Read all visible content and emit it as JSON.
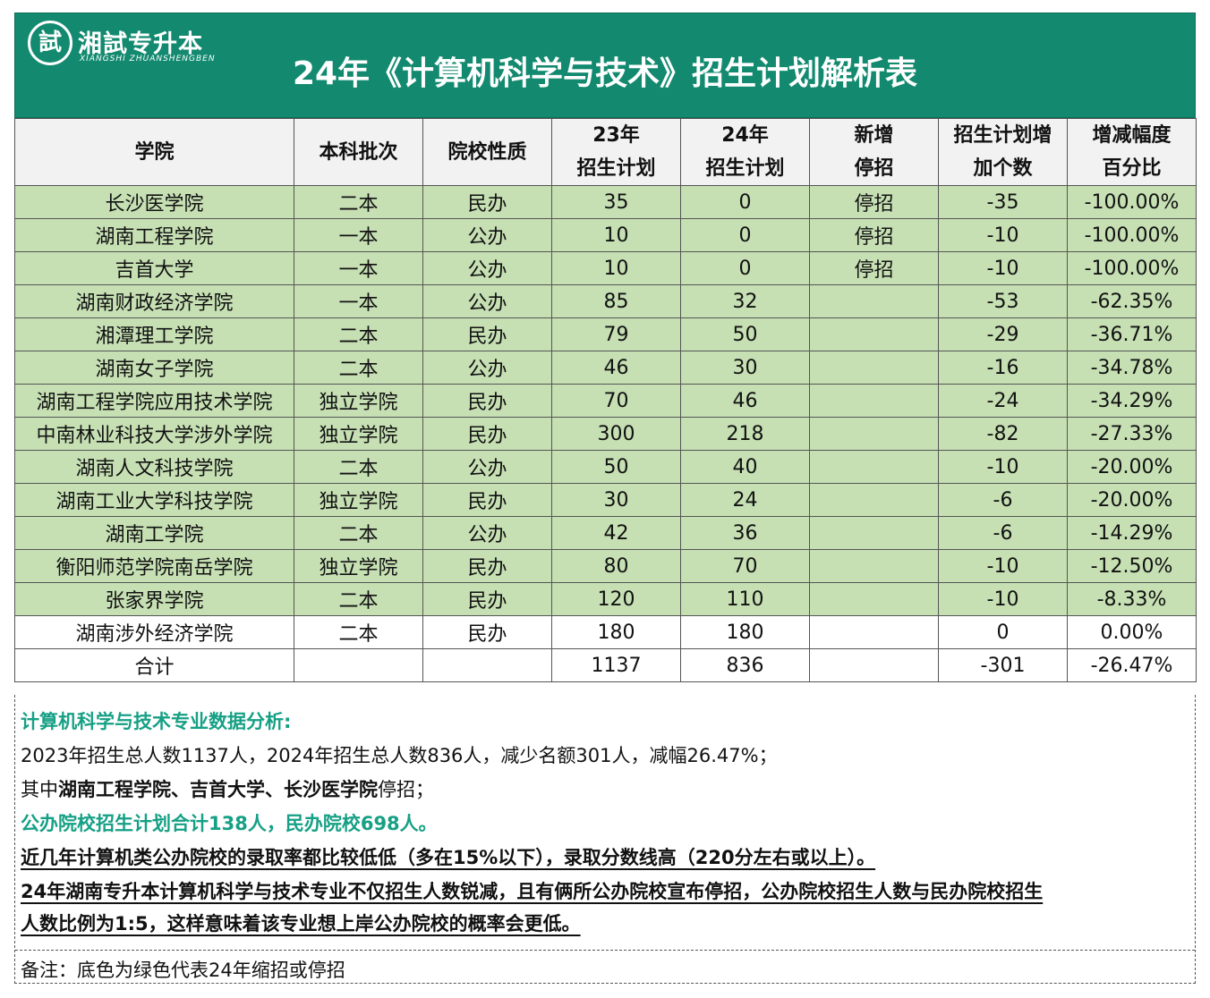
{
  "header": {
    "logo_char": "試",
    "logo_name": "湘試专升本",
    "logo_pinyin": "XIANGSHI ZHUANSHENGBEN",
    "title": "24年《计算机科学与技术》招生计划解析表"
  },
  "table": {
    "columns": [
      [
        "学院"
      ],
      [
        "本科批次"
      ],
      [
        "院校性质"
      ],
      [
        "23年",
        "招生计划"
      ],
      [
        "24年",
        "招生计划"
      ],
      [
        "新增",
        "停招"
      ],
      [
        "招生计划增",
        "加个数"
      ],
      [
        "增减幅度",
        "百分比"
      ]
    ],
    "rows": [
      [
        "长沙医学院",
        "二本",
        "民办",
        "35",
        "0",
        "停招",
        "-35",
        "-100.00%"
      ],
      [
        "湖南工程学院",
        "一本",
        "公办",
        "10",
        "0",
        "停招",
        "-10",
        "-100.00%"
      ],
      [
        "吉首大学",
        "一本",
        "公办",
        "10",
        "0",
        "停招",
        "-10",
        "-100.00%"
      ],
      [
        "湖南财政经济学院",
        "一本",
        "公办",
        "85",
        "32",
        null,
        "-53",
        "-62.35%"
      ],
      [
        "湘潭理工学院",
        "二本",
        "民办",
        "79",
        "50",
        null,
        "-29",
        "-36.71%"
      ],
      [
        "湖南女子学院",
        "二本",
        "公办",
        "46",
        "30",
        null,
        "-16",
        "-34.78%"
      ],
      [
        "湖南工程学院应用技术学院",
        "独立学院",
        "民办",
        "70",
        "46",
        null,
        "-24",
        "-34.29%"
      ],
      [
        "中南林业科技大学涉外学院",
        "独立学院",
        "民办",
        "300",
        "218",
        null,
        "-82",
        "-27.33%"
      ],
      [
        "湖南人文科技学院",
        "二本",
        "公办",
        "50",
        "40",
        null,
        "-10",
        "-20.00%"
      ],
      [
        "湖南工业大学科技学院",
        "独立学院",
        "民办",
        "30",
        "24",
        null,
        "-6",
        "-20.00%"
      ],
      [
        "湖南工学院",
        "二本",
        "公办",
        "42",
        "36",
        null,
        "-6",
        "-14.29%"
      ],
      [
        "衡阳师范学院南岳学院",
        "独立学院",
        "民办",
        "80",
        "70",
        null,
        "-10",
        "-12.50%"
      ],
      [
        "张家界学院",
        "二本",
        "民办",
        "120",
        "110",
        null,
        "-10",
        "-8.33%"
      ],
      [
        "湖南涉外经济学院",
        "二本",
        "民办",
        "180",
        "180",
        null,
        "0",
        "0.00%"
      ]
    ],
    "green_rows": 13,
    "total": [
      "合计",
      null,
      null,
      "1137",
      "836",
      null,
      "-301",
      "-26.47%"
    ]
  },
  "notes": {
    "heading": "计算机科学与技术专业数据分析:",
    "summary": "2023年招生总人数1137人，2024年招生总人数836人，减少名额301人，减幅26.47%；",
    "stopped": {
      "prefix": "其中",
      "schools": "湖南工程学院、吉首大学、长沙医学院",
      "suffix": "停招；"
    },
    "split": "公办院校招生计划合计138人，民办院校698人。",
    "conclusion1": "近几年计算机类公办院校的录取率都比较低低（多在15%以下），录取分数线高（220分左右或以上）。",
    "conclusion2": [
      "24年湖南专升本计算机科学与技术专业不仅招生人数锐减，且有俩所公办院校宣布停招，公办院校招生人数与民办院校招生",
      "人数比例为1:5，这样意味着该专业想上岸公办院校的概率会更低。"
    ],
    "remark": "备注：底色为绿色代表24年缩招或停招"
  }
}
